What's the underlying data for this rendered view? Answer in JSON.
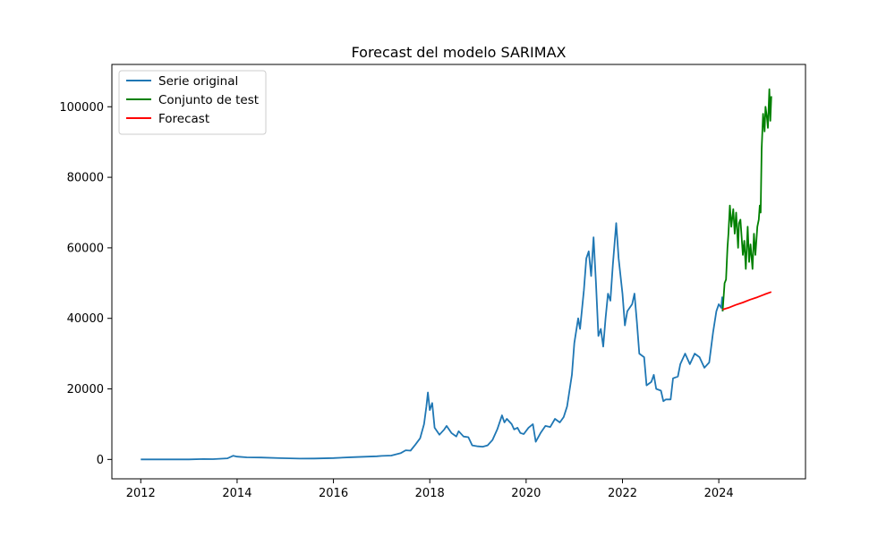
{
  "chart_data": {
    "type": "line",
    "title": "Forecast del modelo SARIMAX",
    "xlabel": "",
    "ylabel": "",
    "xlim": [
      2011.4,
      2025.8
    ],
    "ylim": [
      -5500,
      112000
    ],
    "x_ticks": [
      2012,
      2014,
      2016,
      2018,
      2020,
      2022,
      2024
    ],
    "y_ticks": [
      0,
      20000,
      40000,
      60000,
      80000,
      100000
    ],
    "grid": false,
    "legend_position": "top-left",
    "series": [
      {
        "name": "Serie original",
        "color": "#1f77b4",
        "points": [
          [
            2012.0,
            5
          ],
          [
            2012.5,
            7
          ],
          [
            2013.0,
            13
          ],
          [
            2013.3,
            100
          ],
          [
            2013.5,
            90
          ],
          [
            2013.8,
            300
          ],
          [
            2013.92,
            1050
          ],
          [
            2014.0,
            800
          ],
          [
            2014.2,
            600
          ],
          [
            2014.5,
            550
          ],
          [
            2014.9,
            350
          ],
          [
            2015.3,
            240
          ],
          [
            2015.6,
            260
          ],
          [
            2016.0,
            400
          ],
          [
            2016.4,
            650
          ],
          [
            2016.9,
            900
          ],
          [
            2017.0,
            1000
          ],
          [
            2017.2,
            1100
          ],
          [
            2017.4,
            1800
          ],
          [
            2017.5,
            2600
          ],
          [
            2017.6,
            2500
          ],
          [
            2017.7,
            4200
          ],
          [
            2017.8,
            6000
          ],
          [
            2017.88,
            10000
          ],
          [
            2017.93,
            15000
          ],
          [
            2017.96,
            19000
          ],
          [
            2018.0,
            14000
          ],
          [
            2018.05,
            16000
          ],
          [
            2018.1,
            9000
          ],
          [
            2018.2,
            7000
          ],
          [
            2018.3,
            8500
          ],
          [
            2018.35,
            9500
          ],
          [
            2018.45,
            7500
          ],
          [
            2018.55,
            6500
          ],
          [
            2018.6,
            8000
          ],
          [
            2018.7,
            6500
          ],
          [
            2018.8,
            6300
          ],
          [
            2018.88,
            4000
          ],
          [
            2019.0,
            3700
          ],
          [
            2019.1,
            3600
          ],
          [
            2019.2,
            4000
          ],
          [
            2019.3,
            5500
          ],
          [
            2019.4,
            8500
          ],
          [
            2019.5,
            12500
          ],
          [
            2019.55,
            10500
          ],
          [
            2019.6,
            11500
          ],
          [
            2019.7,
            10000
          ],
          [
            2019.75,
            8500
          ],
          [
            2019.82,
            9000
          ],
          [
            2019.88,
            7500
          ],
          [
            2019.95,
            7200
          ],
          [
            2020.05,
            9000
          ],
          [
            2020.14,
            10000
          ],
          [
            2020.2,
            5000
          ],
          [
            2020.3,
            7500
          ],
          [
            2020.4,
            9500
          ],
          [
            2020.5,
            9200
          ],
          [
            2020.6,
            11500
          ],
          [
            2020.7,
            10500
          ],
          [
            2020.78,
            12000
          ],
          [
            2020.85,
            15000
          ],
          [
            2020.95,
            24000
          ],
          [
            2021.0,
            33000
          ],
          [
            2021.08,
            40000
          ],
          [
            2021.12,
            37000
          ],
          [
            2021.2,
            48000
          ],
          [
            2021.25,
            57000
          ],
          [
            2021.3,
            59000
          ],
          [
            2021.35,
            52000
          ],
          [
            2021.4,
            63000
          ],
          [
            2021.45,
            50000
          ],
          [
            2021.5,
            35000
          ],
          [
            2021.55,
            37000
          ],
          [
            2021.6,
            32000
          ],
          [
            2021.65,
            40000
          ],
          [
            2021.7,
            47000
          ],
          [
            2021.75,
            45000
          ],
          [
            2021.8,
            55000
          ],
          [
            2021.87,
            67000
          ],
          [
            2021.92,
            57000
          ],
          [
            2022.0,
            47000
          ],
          [
            2022.05,
            38000
          ],
          [
            2022.1,
            42000
          ],
          [
            2022.2,
            44000
          ],
          [
            2022.25,
            47000
          ],
          [
            2022.3,
            39000
          ],
          [
            2022.35,
            30000
          ],
          [
            2022.45,
            29000
          ],
          [
            2022.5,
            21000
          ],
          [
            2022.6,
            22000
          ],
          [
            2022.65,
            24000
          ],
          [
            2022.7,
            20000
          ],
          [
            2022.8,
            19500
          ],
          [
            2022.85,
            16500
          ],
          [
            2022.9,
            17000
          ],
          [
            2023.0,
            17000
          ],
          [
            2023.05,
            23000
          ],
          [
            2023.15,
            23500
          ],
          [
            2023.2,
            27000
          ],
          [
            2023.3,
            30000
          ],
          [
            2023.4,
            27000
          ],
          [
            2023.5,
            30000
          ],
          [
            2023.6,
            29000
          ],
          [
            2023.7,
            26000
          ],
          [
            2023.8,
            27500
          ],
          [
            2023.88,
            36000
          ],
          [
            2023.95,
            42000
          ],
          [
            2024.0,
            44000
          ],
          [
            2024.05,
            43000
          ],
          [
            2024.07,
            46000
          ],
          [
            2024.08,
            42000
          ]
        ]
      },
      {
        "name": "Conjunto de test",
        "color": "#008000",
        "points": [
          [
            2024.08,
            42000
          ],
          [
            2024.12,
            50000
          ],
          [
            2024.15,
            51000
          ],
          [
            2024.18,
            60000
          ],
          [
            2024.2,
            64000
          ],
          [
            2024.23,
            72000
          ],
          [
            2024.26,
            66000
          ],
          [
            2024.3,
            71000
          ],
          [
            2024.33,
            64000
          ],
          [
            2024.36,
            70000
          ],
          [
            2024.4,
            60000
          ],
          [
            2024.42,
            67000
          ],
          [
            2024.45,
            68000
          ],
          [
            2024.5,
            58000
          ],
          [
            2024.53,
            62000
          ],
          [
            2024.56,
            54000
          ],
          [
            2024.6,
            66000
          ],
          [
            2024.63,
            56000
          ],
          [
            2024.66,
            61000
          ],
          [
            2024.7,
            54000
          ],
          [
            2024.73,
            64000
          ],
          [
            2024.76,
            58000
          ],
          [
            2024.8,
            66000
          ],
          [
            2024.83,
            68000
          ],
          [
            2024.85,
            72000
          ],
          [
            2024.87,
            70000
          ],
          [
            2024.89,
            88000
          ],
          [
            2024.92,
            98000
          ],
          [
            2024.95,
            93000
          ],
          [
            2024.97,
            100000
          ],
          [
            2025.0,
            97000
          ],
          [
            2025.02,
            94000
          ],
          [
            2025.05,
            105000
          ],
          [
            2025.07,
            96000
          ],
          [
            2025.09,
            103000
          ]
        ]
      },
      {
        "name": "Forecast",
        "color": "#ff0000",
        "points": [
          [
            2024.08,
            42500
          ],
          [
            2024.2,
            43000
          ],
          [
            2024.35,
            43800
          ],
          [
            2024.5,
            44500
          ],
          [
            2024.65,
            45300
          ],
          [
            2024.8,
            46000
          ],
          [
            2024.95,
            46800
          ],
          [
            2025.09,
            47500
          ]
        ]
      }
    ]
  }
}
